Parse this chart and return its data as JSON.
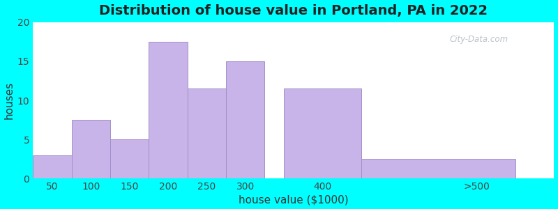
{
  "title": "Distribution of house value in Portland, PA in 2022",
  "xlabel": "house value ($1000)",
  "ylabel": "houses",
  "xtick_labels": [
    "50",
    "100",
    "150",
    "200",
    "250",
    "300",
    "400",
    ">500"
  ],
  "xtick_positions": [
    50,
    100,
    150,
    200,
    250,
    300,
    400,
    600
  ],
  "bar_left_edges": [
    25,
    75,
    125,
    175,
    225,
    275,
    350,
    450
  ],
  "bar_widths": [
    50,
    50,
    50,
    50,
    50,
    50,
    100,
    200
  ],
  "bar_values": [
    3,
    7.5,
    5,
    17.5,
    11.5,
    15,
    11.5,
    2.5
  ],
  "bar_color": "#C8B4E8",
  "bar_edgecolor": "#A090C8",
  "ylim": [
    0,
    20
  ],
  "yticks": [
    0,
    5,
    10,
    15,
    20
  ],
  "bg_color_left": "#e2f2d8",
  "bg_color_right": "#f0f4ee",
  "outer_bg": "#00FFFF",
  "title_fontsize": 14,
  "axis_label_fontsize": 11,
  "tick_fontsize": 10,
  "watermark_text": "City-Data.com"
}
